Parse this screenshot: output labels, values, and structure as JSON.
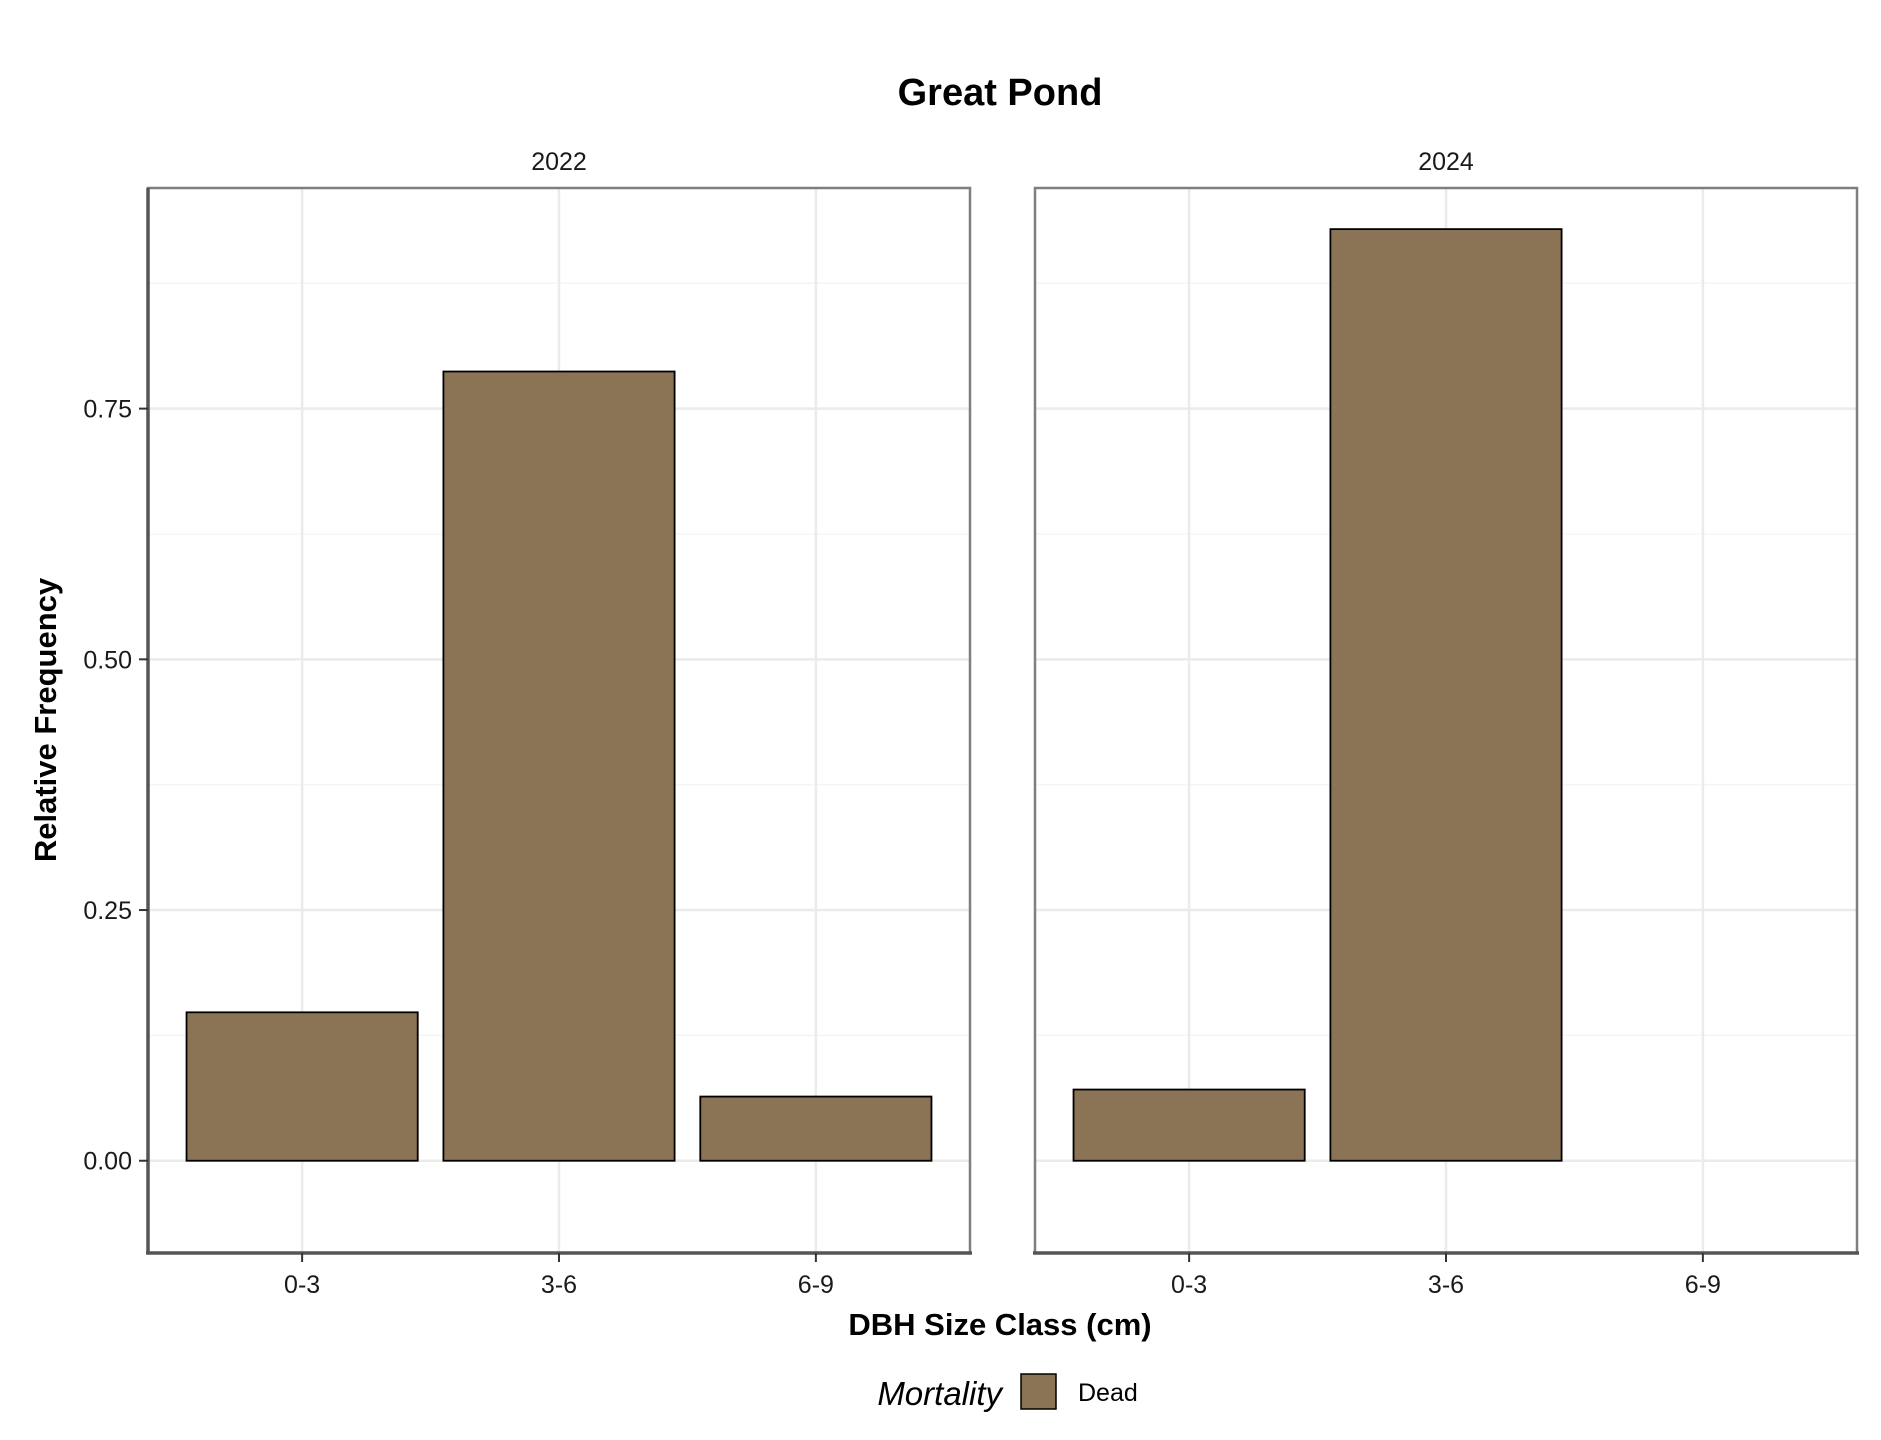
{
  "chart_data": {
    "type": "bar",
    "title": "Great Pond",
    "xlabel": "DBH Size Class (cm)",
    "ylabel": "Relative Frequency",
    "categories": [
      "0-3",
      "3-6",
      "6-9"
    ],
    "ylim": [
      -0.092,
      0.97
    ],
    "yticks": [
      0.0,
      0.25,
      0.5,
      0.75
    ],
    "ytick_labels": [
      "0.00",
      "0.25",
      "0.50",
      "0.75"
    ],
    "grid": true,
    "legend": {
      "title": "Mortality",
      "placement": "bottom",
      "entries": [
        "Dead"
      ]
    },
    "panels": [
      {
        "label": "2022",
        "series": [
          {
            "name": "Dead",
            "values": [
              0.148,
              0.787,
              0.064
            ]
          }
        ]
      },
      {
        "label": "2024",
        "series": [
          {
            "name": "Dead",
            "values": [
              0.071,
              0.929,
              null
            ]
          }
        ]
      }
    ],
    "colors": {
      "bar_fill": "#8B7355",
      "bar_stroke": "#000000",
      "panel_border": "#7f7f7f",
      "grid": "#ebebeb"
    }
  }
}
